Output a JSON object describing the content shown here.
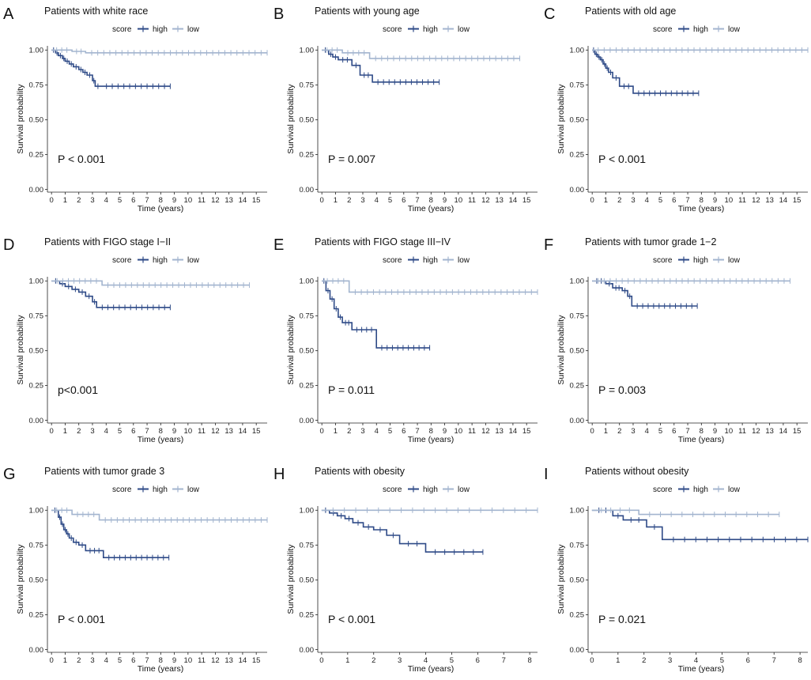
{
  "figure": {
    "colors": {
      "high": "#2E4A87",
      "low": "#A3B5CF"
    },
    "legend": {
      "score_label": "score",
      "high_label": "high",
      "low_label": "low"
    },
    "ylabel": "Survival probability",
    "xlabel": "Time (years)"
  },
  "chart_data": [
    {
      "panel": "A",
      "title": "Patients with white race",
      "type": "line",
      "xlabel": "Time (years)",
      "ylabel": "Survival probability",
      "xlim": [
        -0.3,
        15.8
      ],
      "ylim": [
        -0.02,
        1.03
      ],
      "xticks": [
        "0",
        "1",
        "2",
        "3",
        "4",
        "5",
        "6",
        "7",
        "8",
        "9",
        "10",
        "11",
        "12",
        "13",
        "14",
        "15"
      ],
      "yticks": [
        "0.00",
        "0.25",
        "0.50",
        "0.75",
        "1.00"
      ],
      "pvalue": "P < 0.001",
      "series": [
        {
          "name": "high",
          "x": [
            0,
            0.3,
            0.5,
            0.8,
            1.0,
            1.3,
            1.6,
            2.0,
            2.3,
            2.6,
            3.0,
            3.2,
            3.6,
            8.7
          ],
          "y": [
            1,
            0.98,
            0.96,
            0.94,
            0.92,
            0.9,
            0.88,
            0.86,
            0.84,
            0.82,
            0.78,
            0.74,
            0.74,
            0.74
          ]
        },
        {
          "name": "low",
          "x": [
            0,
            1.5,
            2.5,
            15.8
          ],
          "y": [
            1,
            0.99,
            0.98,
            0.98
          ]
        }
      ]
    },
    {
      "panel": "B",
      "title": "Patients with young age",
      "type": "line",
      "xlabel": "Time (years)",
      "ylabel": "Survival probability",
      "xlim": [
        -0.3,
        15.8
      ],
      "ylim": [
        -0.02,
        1.03
      ],
      "xticks": [
        "0",
        "1",
        "2",
        "3",
        "4",
        "5",
        "6",
        "7",
        "8",
        "9",
        "10",
        "11",
        "12",
        "13",
        "14",
        "15"
      ],
      "yticks": [
        "0.00",
        "0.25",
        "0.50",
        "0.75",
        "1.00"
      ],
      "pvalue": "P = 0.007",
      "series": [
        {
          "name": "high",
          "x": [
            0,
            0.5,
            0.8,
            1.2,
            2.2,
            2.8,
            3.7,
            8.6
          ],
          "y": [
            1,
            0.97,
            0.95,
            0.93,
            0.89,
            0.82,
            0.77,
            0.77
          ]
        },
        {
          "name": "low",
          "x": [
            0,
            1.5,
            3.5,
            14.5
          ],
          "y": [
            1,
            0.98,
            0.94,
            0.94
          ]
        }
      ]
    },
    {
      "panel": "C",
      "title": "Patients with old age",
      "type": "line",
      "xlabel": "Time (years)",
      "ylabel": "Survival probability",
      "xlim": [
        -0.3,
        15.8
      ],
      "ylim": [
        -0.02,
        1.03
      ],
      "xticks": [
        "0",
        "1",
        "2",
        "3",
        "4",
        "5",
        "6",
        "7",
        "8",
        "9",
        "10",
        "11",
        "12",
        "13",
        "14",
        "15"
      ],
      "yticks": [
        "0.00",
        "0.25",
        "0.50",
        "0.75",
        "1.00"
      ],
      "pvalue": "P < 0.001",
      "series": [
        {
          "name": "high",
          "x": [
            0,
            0.2,
            0.4,
            0.6,
            0.8,
            1.0,
            1.2,
            1.5,
            2.0,
            3.0,
            7.8
          ],
          "y": [
            1,
            0.97,
            0.95,
            0.93,
            0.9,
            0.87,
            0.84,
            0.8,
            0.74,
            0.69,
            0.69
          ]
        },
        {
          "name": "low",
          "x": [
            0,
            15.8
          ],
          "y": [
            1,
            1
          ]
        }
      ]
    },
    {
      "panel": "D",
      "title": "Patients with FIGO stage I−II",
      "type": "line",
      "xlabel": "Time (years)",
      "ylabel": "Survival probability",
      "xlim": [
        -0.3,
        15.8
      ],
      "ylim": [
        -0.02,
        1.03
      ],
      "xticks": [
        "0",
        "1",
        "2",
        "3",
        "4",
        "5",
        "6",
        "7",
        "8",
        "9",
        "10",
        "11",
        "12",
        "13",
        "14",
        "15"
      ],
      "yticks": [
        "0.00",
        "0.25",
        "0.50",
        "0.75",
        "1.00"
      ],
      "pvalue": "p<0.001",
      "series": [
        {
          "name": "high",
          "x": [
            0,
            0.6,
            1.0,
            1.5,
            2.0,
            2.5,
            3.0,
            3.3,
            8.7
          ],
          "y": [
            1,
            0.98,
            0.96,
            0.94,
            0.92,
            0.89,
            0.85,
            0.81,
            0.81
          ]
        },
        {
          "name": "low",
          "x": [
            0,
            3.7,
            14.5
          ],
          "y": [
            1,
            0.97,
            0.97
          ]
        }
      ]
    },
    {
      "panel": "E",
      "title": "Patients with FIGO stage III−IV",
      "type": "line",
      "xlabel": "Time (years)",
      "ylabel": "Survival probability",
      "xlim": [
        -0.3,
        15.8
      ],
      "ylim": [
        -0.02,
        1.03
      ],
      "xticks": [
        "0",
        "1",
        "2",
        "3",
        "4",
        "5",
        "6",
        "7",
        "8",
        "9",
        "10",
        "11",
        "12",
        "13",
        "14",
        "15"
      ],
      "yticks": [
        "0.00",
        "0.25",
        "0.50",
        "0.75",
        "1.00"
      ],
      "pvalue": "P = 0.011",
      "series": [
        {
          "name": "high",
          "x": [
            0,
            0.3,
            0.6,
            0.9,
            1.2,
            1.5,
            2.2,
            4.0,
            7.9
          ],
          "y": [
            1,
            0.93,
            0.87,
            0.8,
            0.74,
            0.7,
            0.65,
            0.52,
            0.52
          ]
        },
        {
          "name": "low",
          "x": [
            0,
            2.0,
            15.8
          ],
          "y": [
            1,
            0.92,
            0.92
          ]
        }
      ]
    },
    {
      "panel": "F",
      "title": "Patients with tumor grade 1−2",
      "type": "line",
      "xlabel": "Time (years)",
      "ylabel": "Survival probability",
      "xlim": [
        -0.3,
        15.8
      ],
      "ylim": [
        -0.02,
        1.03
      ],
      "xticks": [
        "0",
        "1",
        "2",
        "3",
        "4",
        "5",
        "6",
        "7",
        "8",
        "9",
        "10",
        "11",
        "12",
        "13",
        "14",
        "15"
      ],
      "yticks": [
        "0.00",
        "0.25",
        "0.50",
        "0.75",
        "1.00"
      ],
      "pvalue": "P = 0.003",
      "series": [
        {
          "name": "high",
          "x": [
            0,
            1.0,
            1.5,
            2.2,
            2.6,
            2.9,
            7.7
          ],
          "y": [
            1,
            0.98,
            0.95,
            0.93,
            0.89,
            0.82,
            0.82
          ]
        },
        {
          "name": "low",
          "x": [
            0,
            14.5
          ],
          "y": [
            1,
            1
          ]
        }
      ]
    },
    {
      "panel": "G",
      "title": "Patients with tumor grade 3",
      "type": "line",
      "xlabel": "Time (years)",
      "ylabel": "Survival probability",
      "xlim": [
        -0.3,
        15.8
      ],
      "ylim": [
        -0.02,
        1.03
      ],
      "xticks": [
        "0",
        "1",
        "2",
        "3",
        "4",
        "5",
        "6",
        "7",
        "8",
        "9",
        "10",
        "11",
        "12",
        "13",
        "14",
        "15"
      ],
      "yticks": [
        "0.00",
        "0.25",
        "0.50",
        "0.75",
        "1.00"
      ],
      "pvalue": "P < 0.001",
      "series": [
        {
          "name": "high",
          "x": [
            0,
            0.5,
            0.7,
            0.9,
            1.1,
            1.3,
            1.6,
            2.0,
            2.5,
            3.8,
            8.6
          ],
          "y": [
            1,
            0.95,
            0.9,
            0.86,
            0.83,
            0.8,
            0.77,
            0.75,
            0.71,
            0.66,
            0.66
          ]
        },
        {
          "name": "low",
          "x": [
            0,
            1.5,
            3.5,
            15.8
          ],
          "y": [
            1,
            0.97,
            0.93,
            0.93
          ]
        }
      ]
    },
    {
      "panel": "H",
      "title": "Patients with obesity",
      "type": "line",
      "xlabel": "Time (years)",
      "ylabel": "Survival probability",
      "xlim": [
        -0.15,
        8.3
      ],
      "ylim": [
        -0.02,
        1.03
      ],
      "xticks": [
        "0",
        "1",
        "2",
        "3",
        "4",
        "5",
        "6",
        "7",
        "8"
      ],
      "yticks": [
        "0.00",
        "0.25",
        "0.50",
        "0.75",
        "1.00"
      ],
      "pvalue": "P < 0.001",
      "series": [
        {
          "name": "high",
          "x": [
            0,
            0.3,
            0.6,
            0.9,
            1.2,
            1.6,
            2.0,
            2.5,
            3.0,
            4.0,
            6.2
          ],
          "y": [
            1,
            0.98,
            0.96,
            0.94,
            0.91,
            0.88,
            0.86,
            0.82,
            0.76,
            0.7,
            0.7
          ]
        },
        {
          "name": "low",
          "x": [
            0,
            8.3
          ],
          "y": [
            1,
            1
          ]
        }
      ]
    },
    {
      "panel": "I",
      "title": "Patients without obesity",
      "type": "line",
      "xlabel": "Time (years)",
      "ylabel": "Survival probability",
      "xlim": [
        -0.15,
        8.3
      ],
      "ylim": [
        -0.02,
        1.03
      ],
      "xticks": [
        "0",
        "1",
        "2",
        "3",
        "4",
        "5",
        "6",
        "7",
        "8"
      ],
      "yticks": [
        "0.00",
        "0.25",
        "0.50",
        "0.75",
        "1.00"
      ],
      "pvalue": "P = 0.021",
      "series": [
        {
          "name": "high",
          "x": [
            0,
            0.8,
            1.2,
            2.1,
            2.7,
            8.3
          ],
          "y": [
            1,
            0.96,
            0.93,
            0.88,
            0.79,
            0.79
          ]
        },
        {
          "name": "low",
          "x": [
            0,
            1.8,
            7.2
          ],
          "y": [
            1,
            0.97,
            0.97
          ]
        }
      ]
    }
  ]
}
